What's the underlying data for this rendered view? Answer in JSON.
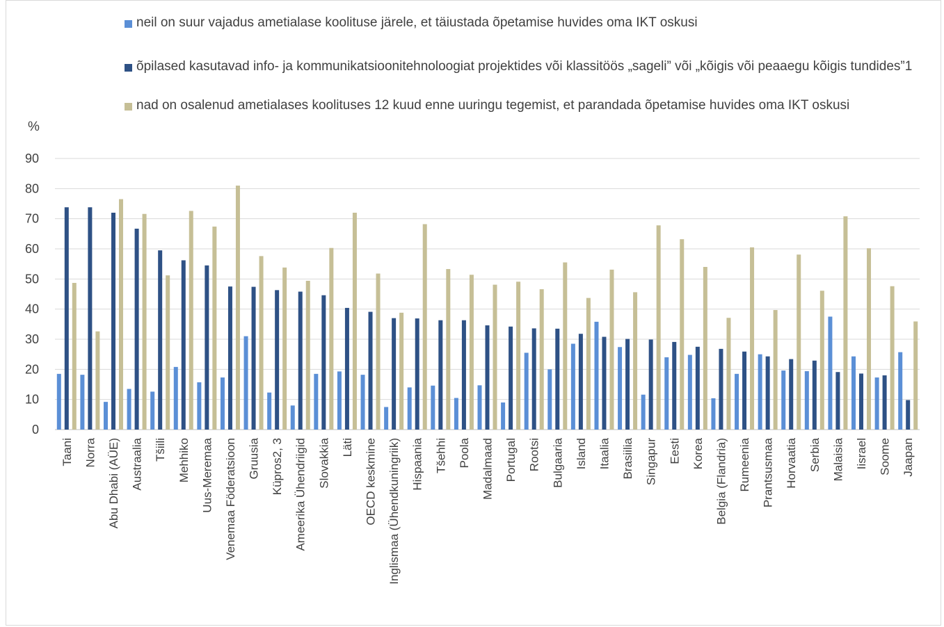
{
  "colors": {
    "s1": "#5b8fd6",
    "s2": "#2e5185",
    "s3": "#c6bf96",
    "grid": "#d9d9d9",
    "text": "#404040"
  },
  "chart_data": {
    "type": "bar",
    "ylabel": "%",
    "ylim": [
      0,
      90
    ],
    "yticks": [
      0,
      10,
      20,
      30,
      40,
      50,
      60,
      70,
      80,
      90
    ],
    "grid": true,
    "legend_position": "top",
    "categories": [
      "Taani",
      "Norra",
      "Abu Dhabi (AÜE)",
      "Austraalia",
      "Tšiili",
      "Mehhiko",
      "Uus-Meremaa",
      "Venemaa Föderatsioon",
      "Gruusia",
      "Küpros2, 3",
      "Ameerika Ühendriigid",
      "Slovakkia",
      "Läti",
      "OECD keskmine",
      "Inglismaa (Ühendkuningriik)",
      "Hispaania",
      "Tšehhi",
      "Poola",
      "Madalmaad",
      "Portugal",
      "Rootsi",
      "Bulgaaria",
      "Island",
      "Itaalia",
      "Brasiilia",
      "Singapur",
      "Eesti",
      "Korea",
      "Belgia (Flandria)",
      "Rumeenia",
      "Prantsusmaa",
      "Horvaatia",
      "Serbia",
      "Malaisia",
      "Iisrael",
      "Soome",
      "Jaapan"
    ],
    "series": [
      {
        "name": "neil on suur vajadus ametialase koolituse järele, et täiustada õpetamise huvides oma IKT oskusi",
        "values": [
          18.5,
          18.2,
          9.2,
          13.5,
          12.6,
          20.8,
          15.7,
          17.3,
          31,
          12.3,
          8,
          18.5,
          19.3,
          18.2,
          7.5,
          14,
          14.6,
          10.5,
          14.7,
          9,
          25.5,
          20,
          28.5,
          35.8,
          27.4,
          11.6,
          24,
          24.8,
          10.4,
          18.5,
          25,
          19.6,
          19.4,
          37.5,
          24.3,
          17.3,
          25.7
        ]
      },
      {
        "name": "õpilased kasutavad info- ja kommunikatsioonitehnoloogiat projektides või klassitöös „sageli” või „kõigis või peaaegu kõigis tundides”1",
        "values": [
          73.8,
          73.8,
          72,
          66.7,
          59.5,
          56.2,
          54.5,
          47.5,
          47.4,
          46.3,
          45.8,
          44.6,
          40.4,
          39.1,
          37,
          36.9,
          36.3,
          36.3,
          34.6,
          34.2,
          33.6,
          33.5,
          31.8,
          30.8,
          30.1,
          29.9,
          29.1,
          27.5,
          26.8,
          25.9,
          24.3,
          23.4,
          22.9,
          19.1,
          18.6,
          18,
          9.8
        ]
      },
      {
        "name": "nad on osalenud ametialases koolituses 12 kuud enne uuringu tegemist, et parandada õpetamise huvides oma IKT oskusi",
        "values": [
          48.7,
          32.6,
          76.5,
          71.6,
          51.2,
          72.6,
          67.4,
          81,
          57.6,
          53.8,
          49.4,
          60.3,
          72,
          51.8,
          38.8,
          68.2,
          53.3,
          51.4,
          48.1,
          49.1,
          46.6,
          55.5,
          43.7,
          53.1,
          45.6,
          67.8,
          63.2,
          54,
          37.1,
          60.5,
          39.7,
          58.1,
          46.1,
          70.8,
          60.2,
          47.6,
          35.9
        ]
      }
    ]
  }
}
